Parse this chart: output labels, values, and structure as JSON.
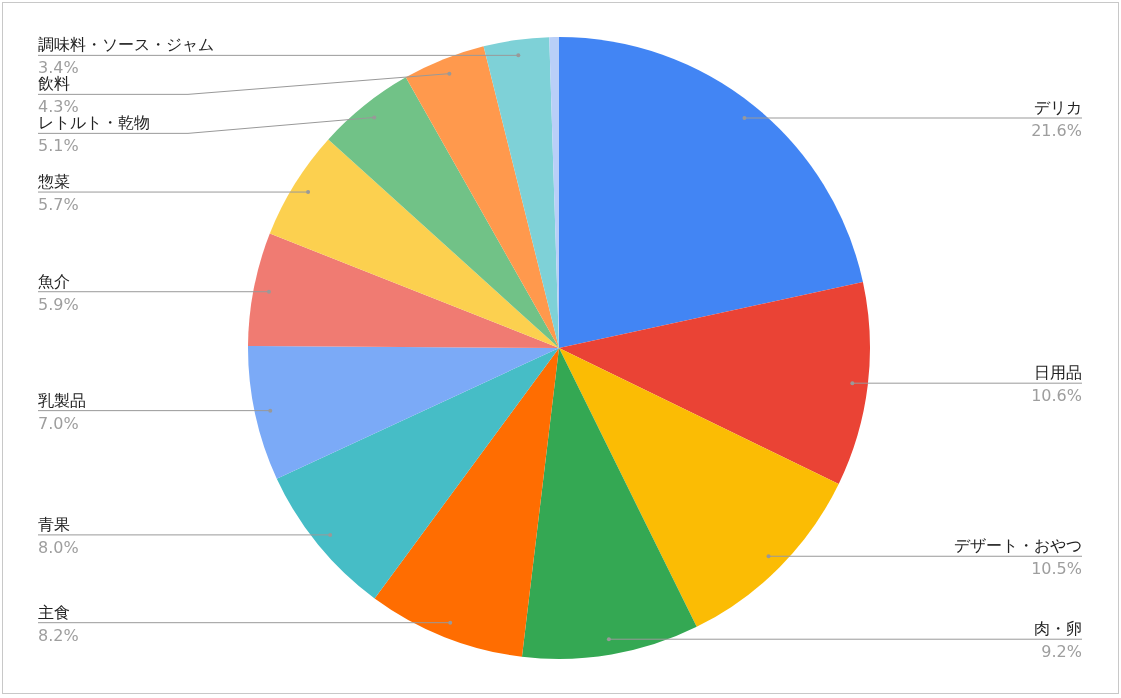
{
  "chart_data": {
    "type": "pie",
    "legend": false,
    "categories": [
      "デリカ",
      "日用品",
      "デザート・おやつ",
      "肉・卵",
      "主食",
      "青果",
      "乳製品",
      "魚介",
      "惣菜",
      "レトルト・乾物",
      "飲料",
      "調味料・ソース・ジャム",
      null
    ],
    "values": [
      21.6,
      10.6,
      10.5,
      9.2,
      8.2,
      8.0,
      7.0,
      5.9,
      5.7,
      5.1,
      4.3,
      3.4,
      0.5
    ],
    "value_labels": [
      "21.6%",
      "10.6%",
      "10.5%",
      "9.2%",
      "8.2%",
      "8.0%",
      "7.0%",
      "5.9%",
      "5.7%",
      "5.1%",
      "4.3%",
      "3.4%",
      null
    ],
    "colors": [
      "#4285f4",
      "#ea4335",
      "#fbbc04",
      "#34a853",
      "#ff6d01",
      "#46bdc6",
      "#7baaf7",
      "#f07b72",
      "#fcd04f",
      "#71c287",
      "#ff994d",
      "#7ed1d7",
      "#b9cff8"
    ]
  }
}
